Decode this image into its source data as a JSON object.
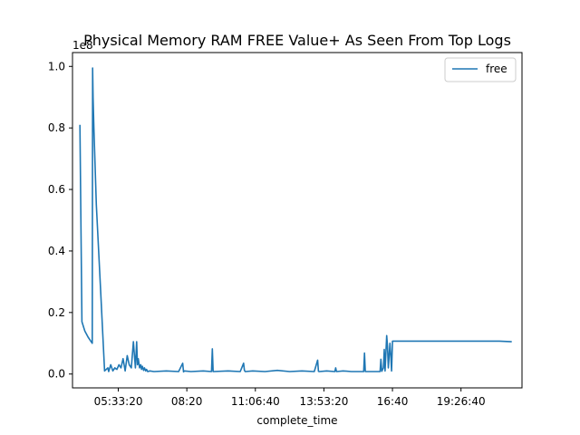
{
  "colors": {
    "series": "#1f77b4",
    "axes": "#000000",
    "background": "#ffffff"
  },
  "chart_data": {
    "type": "line",
    "title": "Physical Memory RAM FREE Value+ As Seen From Top Logs",
    "xlabel": "complete_time",
    "ylabel": "",
    "y_offset_label": "1e8",
    "y_scale_factor": 100000000,
    "grid": false,
    "legend_position": "top-right",
    "xlim": [
      "03:42:00",
      "21:55:00"
    ],
    "ylim": [
      -0.045,
      1.045
    ],
    "x_ticks": [
      "05:33:20",
      "08:20",
      "11:06:40",
      "13:53:20",
      "16:40",
      "19:26:40"
    ],
    "y_ticks": [
      "0.0",
      "0.2",
      "0.4",
      "0.6",
      "0.8",
      "1.0"
    ],
    "series": [
      {
        "name": "free",
        "x": [
          "04:00:00",
          "04:05:00",
          "04:12:00",
          "04:20:00",
          "04:30:00",
          "04:31:00",
          "04:32:00",
          "04:34:00",
          "04:40:00",
          "04:50:00",
          "05:00:00",
          "05:08:00",
          "05:10:00",
          "05:15:00",
          "05:20:00",
          "05:25:00",
          "05:30:00",
          "05:35:00",
          "05:40:00",
          "05:45:00",
          "05:50:00",
          "05:55:00",
          "06:00:00",
          "06:05:00",
          "06:10:00",
          "06:15:00",
          "06:18:00",
          "06:20:00",
          "06:22:00",
          "06:25:00",
          "06:28:00",
          "06:30:00",
          "06:32:00",
          "06:35:00",
          "06:37:00",
          "06:40:00",
          "06:42:00",
          "06:45:00",
          "06:50:00",
          "07:00:00",
          "07:30:00",
          "08:00:00",
          "08:10:00",
          "08:12:00",
          "08:14:00",
          "08:30:00",
          "09:00:00",
          "09:20:00",
          "09:22:00",
          "09:24:00",
          "10:00:00",
          "10:30:00",
          "10:38:00",
          "10:40:00",
          "10:42:00",
          "11:00:00",
          "11:30:00",
          "12:00:00",
          "12:30:00",
          "13:00:00",
          "13:30:00",
          "13:38:00",
          "13:40:00",
          "13:42:00",
          "14:00:00",
          "14:20:00",
          "14:22:00",
          "14:24:00",
          "14:40:00",
          "15:00:00",
          "15:20:00",
          "15:30:00",
          "15:32:00",
          "15:34:00",
          "16:00:00",
          "16:10:00",
          "16:12:00",
          "16:14:00",
          "16:18:00",
          "16:20:00",
          "16:22:00",
          "16:26:00",
          "16:28:00",
          "16:30:00",
          "16:34:00",
          "16:36:00",
          "16:38:00",
          "16:40:00",
          "16:42:00",
          "16:45:00",
          "17:00:00",
          "18:00:00",
          "19:00:00",
          "20:00:00",
          "21:00:00",
          "21:30:00"
        ],
        "values": [
          0.81,
          0.17,
          0.14,
          0.12,
          0.1,
          0.995,
          0.9,
          0.8,
          0.55,
          0.28,
          0.01,
          0.02,
          0.008,
          0.03,
          0.01,
          0.02,
          0.015,
          0.03,
          0.02,
          0.05,
          0.01,
          0.06,
          0.03,
          0.02,
          0.105,
          0.02,
          0.105,
          0.03,
          0.05,
          0.02,
          0.03,
          0.015,
          0.025,
          0.012,
          0.02,
          0.01,
          0.015,
          0.008,
          0.01,
          0.008,
          0.01,
          0.008,
          0.035,
          0.007,
          0.01,
          0.008,
          0.01,
          0.008,
          0.082,
          0.008,
          0.01,
          0.008,
          0.035,
          0.012,
          0.008,
          0.01,
          0.008,
          0.012,
          0.008,
          0.01,
          0.008,
          0.045,
          0.009,
          0.008,
          0.01,
          0.008,
          0.02,
          0.008,
          0.01,
          0.008,
          0.008,
          0.008,
          0.068,
          0.008,
          0.008,
          0.008,
          0.048,
          0.009,
          0.02,
          0.08,
          0.01,
          0.125,
          0.09,
          0.02,
          0.1,
          0.06,
          0.01,
          0.107,
          0.107,
          0.107,
          0.107,
          0.107,
          0.107,
          0.107,
          0.107,
          0.105
        ]
      }
    ]
  }
}
